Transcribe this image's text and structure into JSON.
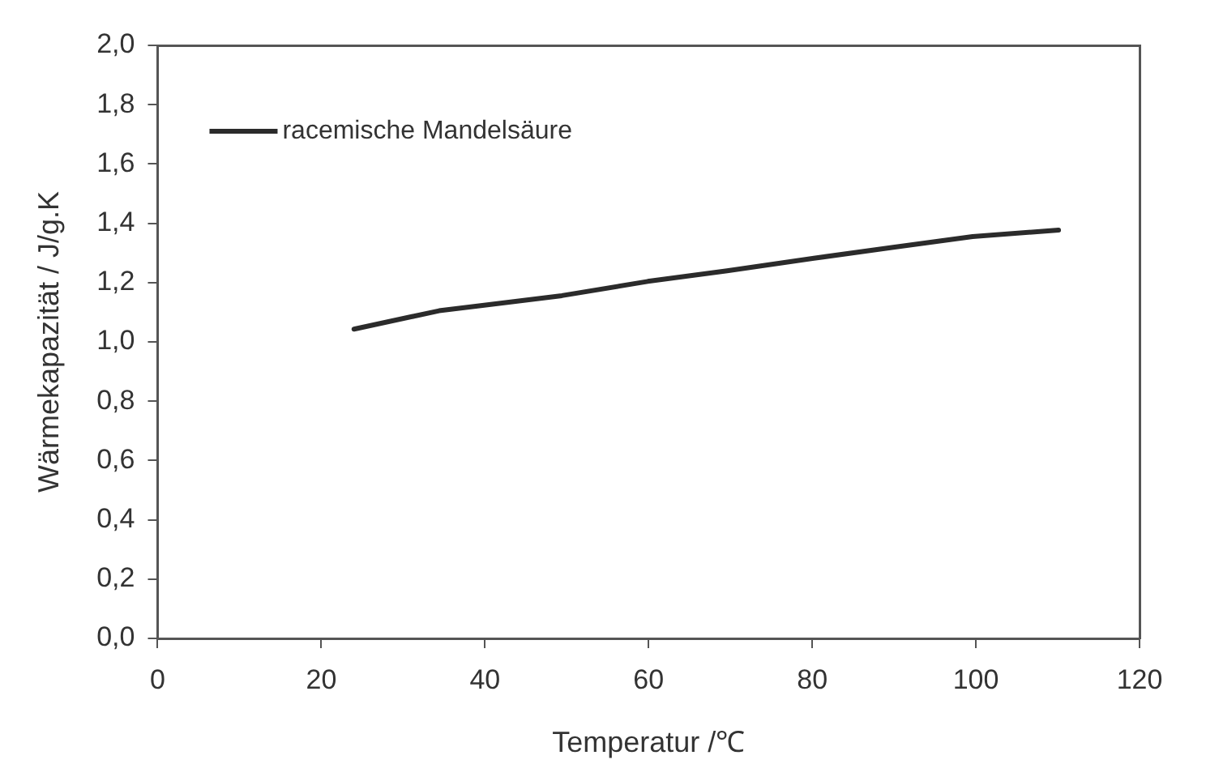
{
  "chart_data": {
    "type": "line",
    "xlabel": "Temperatur /℃",
    "ylabel": "Wärmekapazität / J/g.K",
    "series": [
      {
        "name": "racemische Mandelsäure",
        "color": "#2b2b2b",
        "x": [
          24,
          34.4,
          39.7,
          49.4,
          59.9,
          69.6,
          80.2,
          89.9,
          99.6,
          110.1
        ],
        "values": [
          1.043,
          1.105,
          1.123,
          1.156,
          1.204,
          1.24,
          1.282,
          1.319,
          1.355,
          1.377
        ]
      }
    ],
    "xlim": [
      0,
      120
    ],
    "xticks": [
      0,
      20,
      40,
      60,
      80,
      100,
      120
    ],
    "ylim": [
      0,
      2
    ],
    "yticks": [
      {
        "value": 0,
        "label": "0,0"
      },
      {
        "value": 0.2,
        "label": "0,2"
      },
      {
        "value": 0.4,
        "label": "0,4"
      },
      {
        "value": 0.6,
        "label": "0,6"
      },
      {
        "value": 0.8,
        "label": "0,8"
      },
      {
        "value": 1,
        "label": "1,0"
      },
      {
        "value": 1.2,
        "label": "1,2"
      },
      {
        "value": 1.4,
        "label": "1,4"
      },
      {
        "value": 1.6,
        "label": "1,6"
      },
      {
        "value": 1.8,
        "label": "1,8"
      },
      {
        "value": 2,
        "label": "2,0"
      }
    ],
    "grid": false,
    "legend": "top left",
    "marker": "none",
    "line_style": "solid"
  }
}
